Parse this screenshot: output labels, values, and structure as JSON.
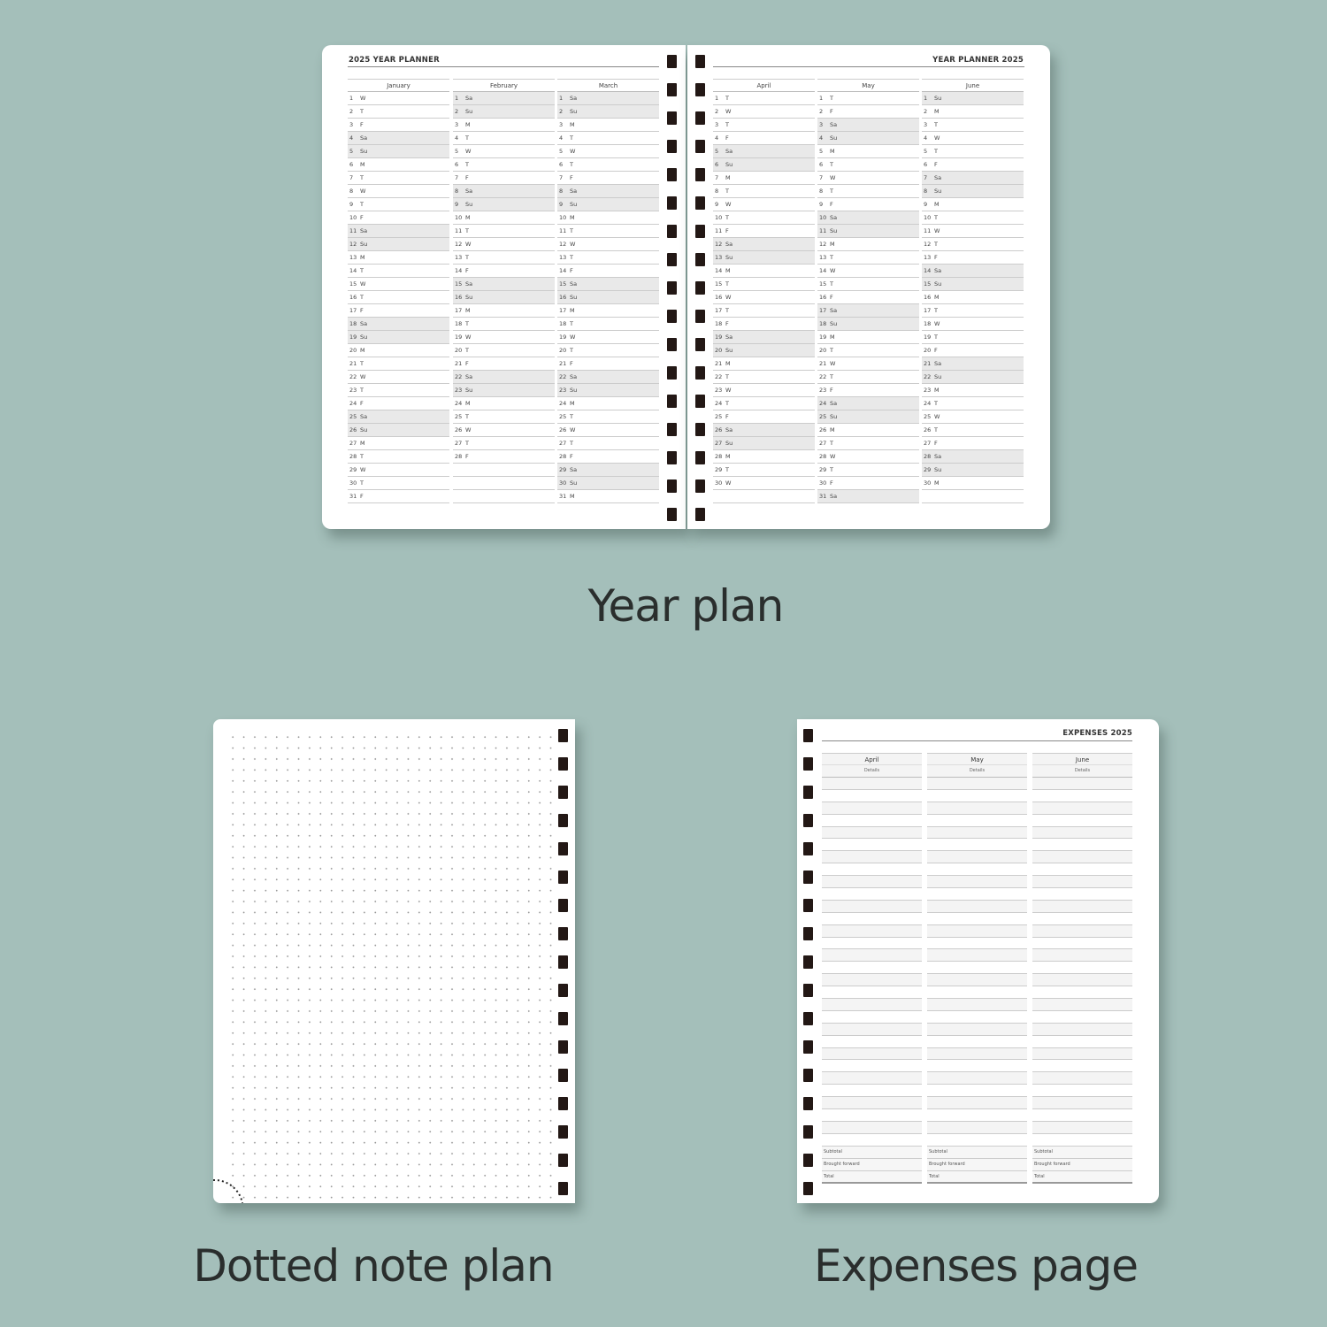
{
  "year_planner": {
    "left_title": "2025 YEAR PLANNER",
    "right_title": "YEAR PLANNER 2025",
    "weekend_labels": [
      "Sa",
      "Su"
    ],
    "months": [
      {
        "name": "January",
        "days": [
          "W",
          "T",
          "F",
          "Sa",
          "Su",
          "M",
          "T",
          "W",
          "T",
          "F",
          "Sa",
          "Su",
          "M",
          "T",
          "W",
          "T",
          "F",
          "Sa",
          "Su",
          "M",
          "T",
          "W",
          "T",
          "F",
          "Sa",
          "Su",
          "M",
          "T",
          "W",
          "T",
          "F"
        ]
      },
      {
        "name": "February",
        "days": [
          "Sa",
          "Su",
          "M",
          "T",
          "W",
          "T",
          "F",
          "Sa",
          "Su",
          "M",
          "T",
          "W",
          "T",
          "F",
          "Sa",
          "Su",
          "M",
          "T",
          "W",
          "T",
          "F",
          "Sa",
          "Su",
          "M",
          "T",
          "W",
          "T",
          "F"
        ]
      },
      {
        "name": "March",
        "days": [
          "Sa",
          "Su",
          "M",
          "T",
          "W",
          "T",
          "F",
          "Sa",
          "Su",
          "M",
          "T",
          "W",
          "T",
          "F",
          "Sa",
          "Su",
          "M",
          "T",
          "W",
          "T",
          "F",
          "Sa",
          "Su",
          "M",
          "T",
          "W",
          "T",
          "F",
          "Sa",
          "Su",
          "M"
        ]
      },
      {
        "name": "April",
        "days": [
          "T",
          "W",
          "T",
          "F",
          "Sa",
          "Su",
          "M",
          "T",
          "W",
          "T",
          "F",
          "Sa",
          "Su",
          "M",
          "T",
          "W",
          "T",
          "F",
          "Sa",
          "Su",
          "M",
          "T",
          "W",
          "T",
          "F",
          "Sa",
          "Su",
          "M",
          "T",
          "W"
        ]
      },
      {
        "name": "May",
        "days": [
          "T",
          "F",
          "Sa",
          "Su",
          "M",
          "T",
          "W",
          "T",
          "F",
          "Sa",
          "Su",
          "M",
          "T",
          "W",
          "T",
          "F",
          "Sa",
          "Su",
          "M",
          "T",
          "W",
          "T",
          "F",
          "Sa",
          "Su",
          "M",
          "T",
          "W",
          "T",
          "F",
          "Sa"
        ]
      },
      {
        "name": "June",
        "days": [
          "Su",
          "M",
          "T",
          "W",
          "T",
          "F",
          "Sa",
          "Su",
          "M",
          "T",
          "W",
          "T",
          "F",
          "Sa",
          "Su",
          "M",
          "T",
          "W",
          "T",
          "F",
          "Sa",
          "Su",
          "M",
          "T",
          "W",
          "T",
          "F",
          "Sa",
          "Su",
          "M"
        ]
      }
    ]
  },
  "expenses": {
    "title": "EXPENSES 2025",
    "columns": [
      {
        "month": "April",
        "details": "Details"
      },
      {
        "month": "May",
        "details": "Details"
      },
      {
        "month": "June",
        "details": "Details"
      }
    ],
    "summary": [
      "Subtotal",
      "Brought forward",
      "Total"
    ]
  },
  "captions": {
    "year": "Year plan",
    "dotted": "Dotted note plan",
    "expenses": "Expenses page"
  },
  "colors": {
    "background": "#a4bfba",
    "weekend_shade": "#e9e9e9",
    "ring": "#231815"
  }
}
